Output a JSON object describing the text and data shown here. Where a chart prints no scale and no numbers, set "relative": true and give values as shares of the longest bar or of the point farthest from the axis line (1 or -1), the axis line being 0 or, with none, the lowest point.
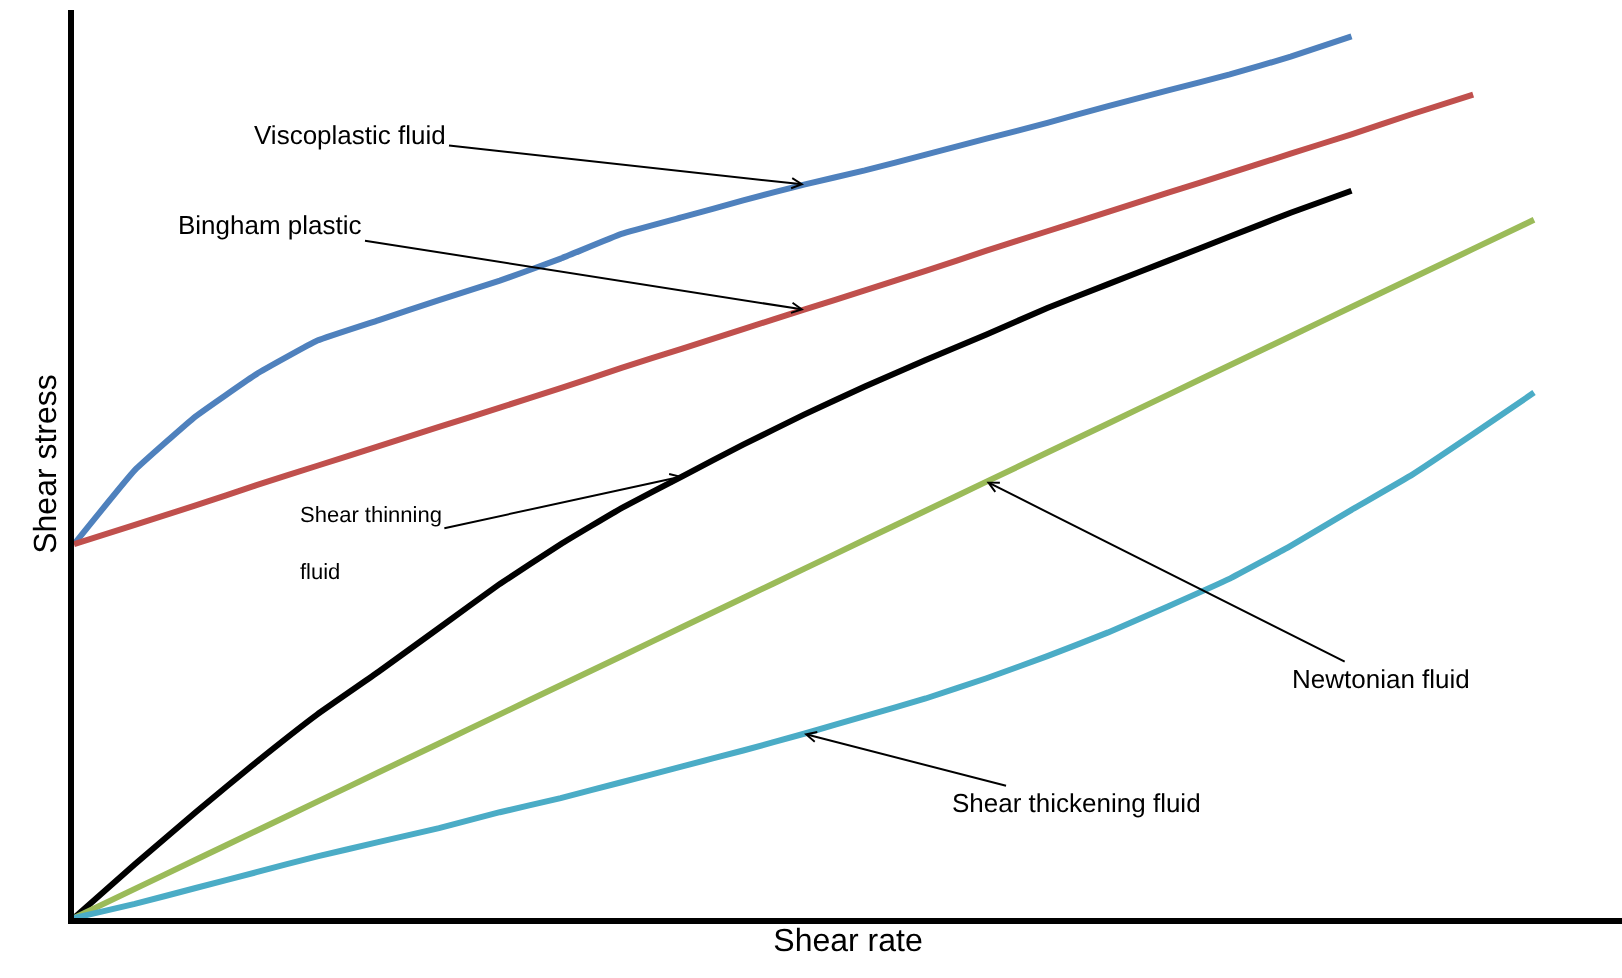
{
  "chart_data": {
    "type": "line",
    "relative": true,
    "xlabel": "Shear rate",
    "ylabel": "Shear stress",
    "tick_labels": false,
    "legend": false,
    "marker": "none",
    "line_style": "solid",
    "categories": [
      null,
      null,
      null,
      null,
      null,
      null,
      null,
      null,
      null,
      null,
      null,
      null,
      null,
      null,
      null,
      null,
      null,
      null,
      null,
      null,
      null,
      null,
      null,
      null,
      null
    ],
    "series": [
      {
        "name": "Viscoplastic fluid",
        "color": "#4f81bd",
        "values": [
          0.424,
          0.508,
          0.569,
          0.617,
          0.655,
          0.678,
          0.701,
          0.723,
          0.748,
          0.776,
          0.795,
          0.814,
          0.832,
          0.848,
          0.866,
          0.884,
          0.902,
          0.921,
          0.939,
          0.957,
          0.977,
          1.0,
          null,
          null,
          null
        ]
      },
      {
        "name": "Bingham plastic",
        "color": "#c0504d",
        "values": [
          0.424,
          0.446,
          0.468,
          0.491,
          0.513,
          0.535,
          0.557,
          0.579,
          0.601,
          0.624,
          0.646,
          0.668,
          0.69,
          0.712,
          0.734,
          0.757,
          0.779,
          0.801,
          0.823,
          0.845,
          0.867,
          0.889,
          0.912,
          0.934,
          null
        ]
      },
      {
        "name": "Shear thinning fluid",
        "color": "#000000",
        "values": [
          0,
          0.061,
          0.12,
          0.177,
          0.231,
          0.279,
          0.329,
          0.379,
          0.424,
          0.465,
          0.501,
          0.537,
          0.571,
          0.603,
          0.633,
          0.662,
          0.692,
          0.719,
          0.746,
          0.773,
          0.8,
          0.825,
          null,
          null,
          null
        ]
      },
      {
        "name": "Newtonian fluid",
        "color": "#9bbb59",
        "values": [
          0,
          0.033,
          0.066,
          0.099,
          0.132,
          0.165,
          0.198,
          0.231,
          0.264,
          0.297,
          0.33,
          0.363,
          0.396,
          0.429,
          0.462,
          0.495,
          0.528,
          0.561,
          0.594,
          0.627,
          0.66,
          0.693,
          0.726,
          0.759,
          0.792
        ]
      },
      {
        "name": "Shear thickening fluid",
        "color": "#4bacc6",
        "values": [
          0,
          0.016,
          0.034,
          0.052,
          0.07,
          0.086,
          0.102,
          0.12,
          0.136,
          0.154,
          0.172,
          0.19,
          0.209,
          0.229,
          0.249,
          0.272,
          0.297,
          0.324,
          0.354,
          0.385,
          0.422,
          0.463,
          0.503,
          0.549,
          0.596
        ]
      }
    ]
  }
}
